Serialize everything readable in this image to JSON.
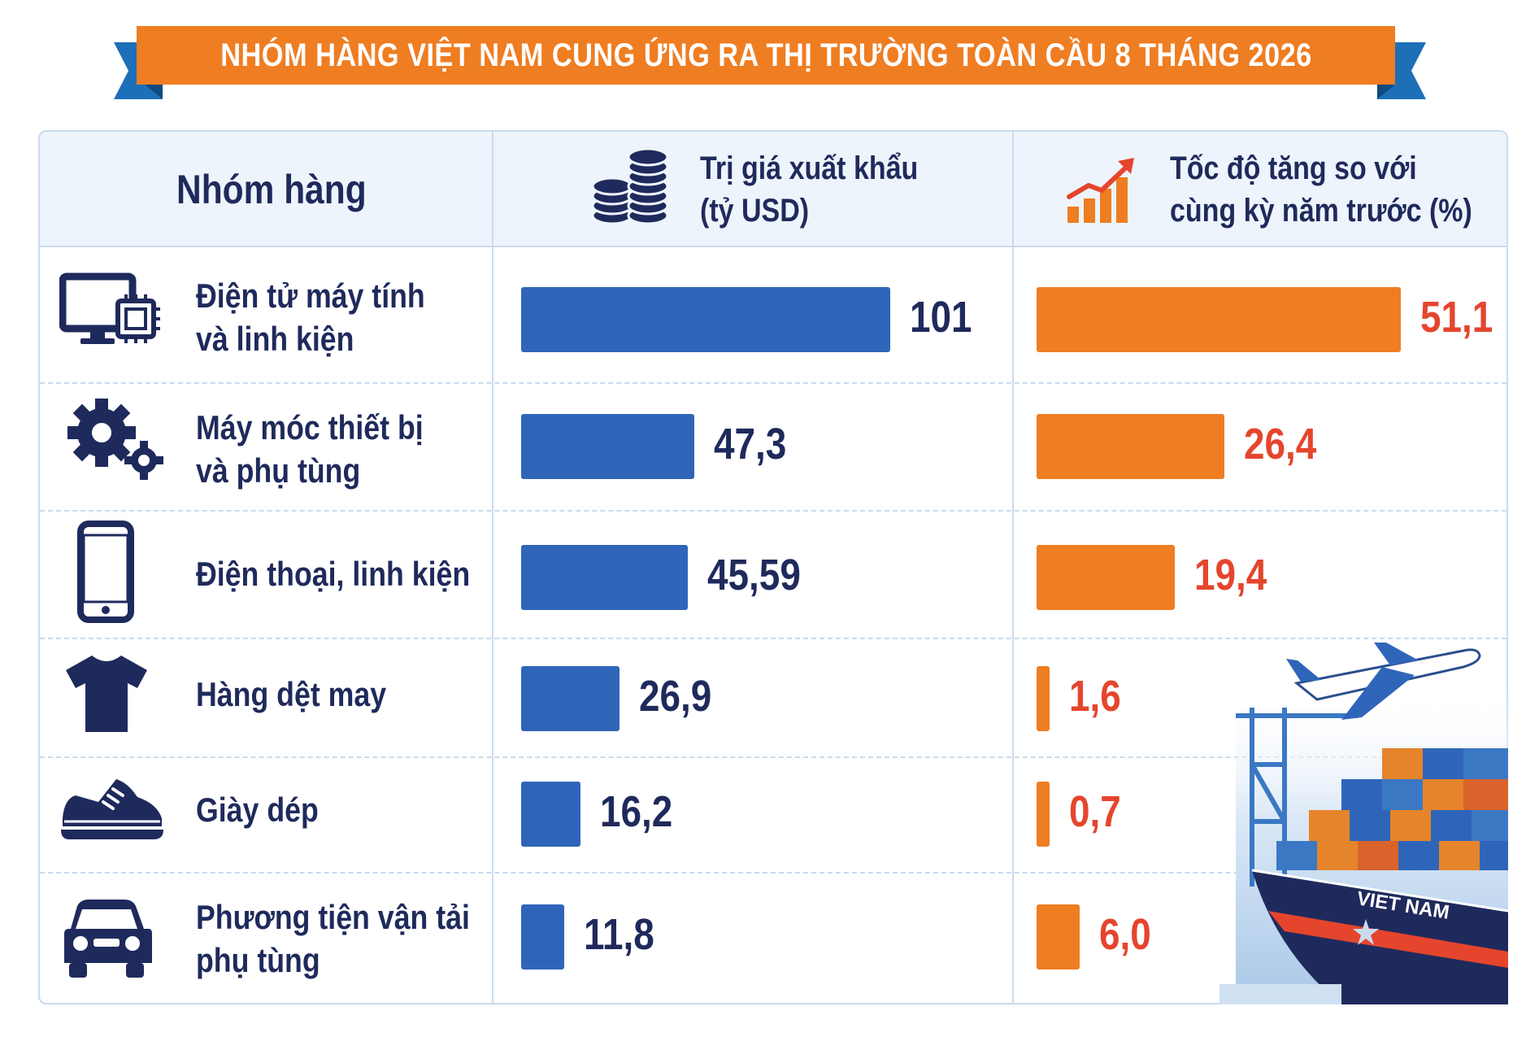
{
  "title": "NHÓM HÀNG VIỆT NAM CUNG ỨNG RA THỊ TRƯỜNG TOÀN CẦU 8 THÁNG 2026",
  "header": {
    "group": "Nhóm hàng",
    "value_line1": "Trị giá xuất khẩu",
    "value_line2": "(tỷ USD)",
    "growth_line1": "Tốc độ tăng so với",
    "growth_line2": "cùng kỳ năm trước (%)"
  },
  "rows": [
    {
      "label1": "Điện tử máy tính",
      "label2": "và linh kiện",
      "icon": "computer-chip-icon",
      "value_text": "101",
      "growth_text": "51,1"
    },
    {
      "label1": "Máy móc thiết bị",
      "label2": "và phụ tùng",
      "icon": "gears-icon",
      "value_text": "47,3",
      "growth_text": "26,4"
    },
    {
      "label1": "Điện thoại, linh kiện",
      "label2": "",
      "icon": "smartphone-icon",
      "value_text": "45,59",
      "growth_text": "19,4"
    },
    {
      "label1": "Hàng dệt may",
      "label2": "",
      "icon": "tshirt-icon",
      "value_text": "26,9",
      "growth_text": "1,6"
    },
    {
      "label1": "Giày dép",
      "label2": "",
      "icon": "shoe-icon",
      "value_text": "16,2",
      "growth_text": "0,7"
    },
    {
      "label1": "Phương tiện vận tải",
      "label2": "phụ tùng",
      "icon": "car-icon",
      "value_text": "11,8",
      "growth_text": "6,0"
    }
  ],
  "ship_text": "VIET NAM",
  "colors": {
    "ribbon": "#ef7d22",
    "ribbon_tail": "#1d6fb8",
    "value_bar": "#2f65b9",
    "growth_bar": "#ef7d22",
    "growth_text": "#e5452d",
    "text": "#1f2a5c"
  },
  "chart_data": [
    {
      "type": "bar",
      "categories": [
        "Điện tử máy tính và linh kiện",
        "Máy móc thiết bị và phụ tùng",
        "Điện thoại, linh kiện",
        "Hàng dệt may",
        "Giày dép",
        "Phương tiện vận tải phụ tùng"
      ],
      "values": [
        101,
        47.3,
        45.59,
        26.9,
        16.2,
        11.8
      ],
      "xlim": [
        0,
        101
      ],
      "orientation": "horizontal"
    },
    {
      "type": "bar",
      "categories": [
        "Điện tử máy tính và linh kiện",
        "Máy móc thiết bị và phụ tùng",
        "Điện thoại, linh kiện",
        "Hàng dệt may",
        "Giày dép",
        "Phương tiện vận tải phụ tùng"
      ],
      "values": [
        51.1,
        26.4,
        19.4,
        1.6,
        0.7,
        6.0
      ],
      "xlim": [
        0,
        51.1
      ],
      "orientation": "horizontal"
    }
  ]
}
